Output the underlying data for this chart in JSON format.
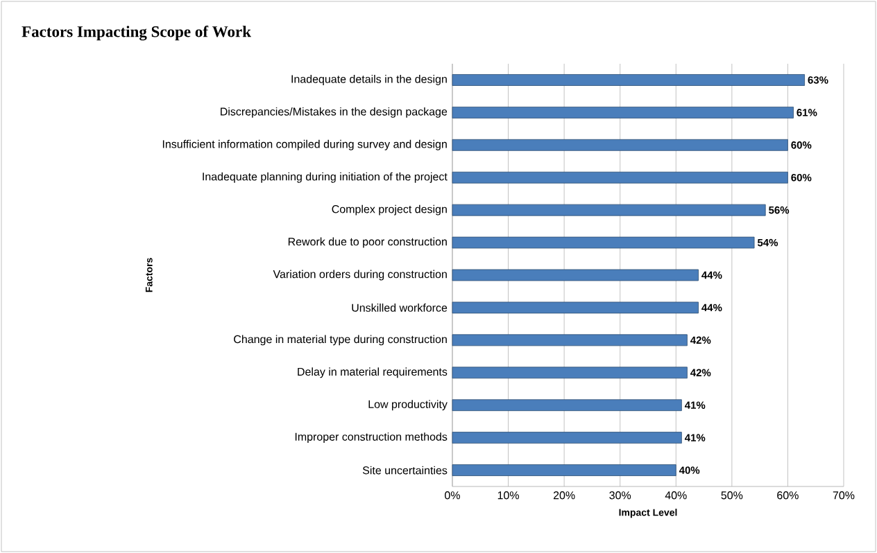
{
  "chart_data": {
    "type": "bar",
    "orientation": "horizontal",
    "title": "Factors Impacting Scope of Work",
    "xlabel": "Impact Level",
    "ylabel": "Factors",
    "categories": [
      "Inadequate details in the design",
      "Discrepancies/Mistakes in the design package",
      "Insufficient information compiled during survey and design",
      "Inadequate planning  during initiation of the project",
      "Complex project design",
      "Rework due to poor construction",
      "Variation orders during construction",
      "Unskilled workforce",
      "Change in material type during construction",
      "Delay in material requirements",
      "Low productivity",
      "Improper construction methods",
      "Site uncertainties"
    ],
    "values": [
      63,
      61,
      60,
      60,
      56,
      54,
      44,
      44,
      42,
      42,
      41,
      41,
      40
    ],
    "value_labels": [
      "63%",
      "61%",
      "60%",
      "60%",
      "56%",
      "54%",
      "44%",
      "44%",
      "42%",
      "42%",
      "41%",
      "41%",
      "40%"
    ],
    "color": "#4a7ebb",
    "xlim": [
      0,
      70
    ],
    "xticks": [
      {
        "value": 0,
        "label": "0%"
      },
      {
        "value": 10,
        "label": "10%"
      },
      {
        "value": 20,
        "label": "20%"
      },
      {
        "value": 30,
        "label": "30%"
      },
      {
        "value": 40,
        "label": "40%"
      },
      {
        "value": 50,
        "label": "50%"
      },
      {
        "value": 60,
        "label": "60%"
      },
      {
        "value": 70,
        "label": "70%"
      }
    ],
    "grid": "x"
  }
}
